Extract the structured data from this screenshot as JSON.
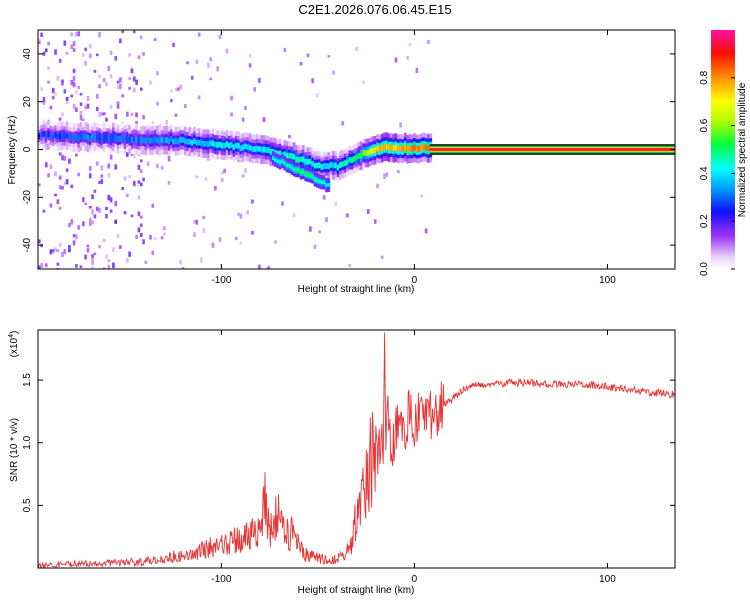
{
  "title": "C2E1.2026.076.06.45.E15",
  "chart_data": [
    {
      "type": "heatmap",
      "xlabel": "Height of straight line (km)",
      "ylabel": "Frequency (Hz)",
      "xlim": [
        -195,
        135
      ],
      "ylim": [
        -50,
        50
      ],
      "xticks": [
        -100,
        0,
        100
      ],
      "xtick_labels": [
        "-100",
        "0",
        "100"
      ],
      "yticks": [
        -40,
        -20,
        0,
        20,
        40
      ],
      "ytick_labels": [
        "-40",
        "-20",
        "0",
        "20",
        "40"
      ],
      "colorbar": {
        "label": "Normalized spectral amplitude",
        "range": [
          0,
          1
        ],
        "ticks": [
          0.0,
          0.2,
          0.4,
          0.6,
          0.8
        ],
        "tick_labels": [
          "0.0",
          "0.2",
          "0.4",
          "0.6",
          "0.8"
        ]
      },
      "ridge": {
        "x": [
          -193,
          -170,
          -150,
          -130,
          -110,
          -100,
          -90,
          -80,
          -70,
          -60,
          -50,
          -45,
          -40,
          -35,
          -30,
          -25,
          -20,
          -15,
          -10,
          -5,
          0,
          5,
          10,
          135
        ],
        "freq": [
          6,
          5,
          4.5,
          4,
          3,
          2,
          1,
          0,
          -2,
          -4,
          -7,
          -7,
          -7,
          -5,
          -3,
          -1,
          0.5,
          1,
          0.5,
          0.5,
          0.5,
          0.5,
          0,
          0
        ],
        "amplitude": [
          0.3,
          0.35,
          0.35,
          0.4,
          0.45,
          0.5,
          0.45,
          0.5,
          0.5,
          0.55,
          0.5,
          0.45,
          0.5,
          0.55,
          0.6,
          0.7,
          0.85,
          0.9,
          0.9,
          0.9,
          0.95,
          0.95,
          0.95,
          0.95
        ]
      },
      "lower_branch": {
        "x": [
          -75,
          -70,
          -65,
          -60,
          -55,
          -50,
          -45
        ],
        "freq": [
          -3,
          -5,
          -7,
          -9,
          -11,
          -13,
          -15
        ],
        "amplitude": [
          0.35,
          0.4,
          0.4,
          0.45,
          0.45,
          0.4,
          0.35
        ]
      }
    },
    {
      "type": "line",
      "xlabel": "Height of straight line (km)",
      "ylabel": "SNR (10 * v/v)",
      "y_multiplier": "(x10",
      "y_multiplier_exp": "4",
      "y_multiplier_close": ")",
      "xlim": [
        -195,
        135
      ],
      "ylim": [
        0,
        1.9
      ],
      "xticks": [
        -100,
        0,
        100
      ],
      "xtick_labels": [
        "-100",
        "0",
        "100"
      ],
      "yticks": [
        0.5,
        1.0,
        1.5
      ],
      "ytick_labels": [
        "0.5",
        "1.0",
        "1.5"
      ],
      "series": [
        {
          "name": "SNR",
          "color": "#e83434",
          "x": [
            -195,
            -180,
            -160,
            -140,
            -125,
            -115,
            -105,
            -95,
            -85,
            -80,
            -78,
            -75,
            -70,
            -65,
            -62,
            -58,
            -52,
            -46,
            -40,
            -36,
            -32,
            -30,
            -27,
            -25,
            -22,
            -20,
            -18,
            -16,
            -15.5,
            -15,
            -14,
            -12,
            -10,
            -8,
            -5,
            -2,
            0,
            3,
            6,
            10,
            15,
            20,
            25,
            30,
            40,
            50,
            60,
            70,
            80,
            90,
            100,
            110,
            120,
            135
          ],
          "y": [
            0.02,
            0.03,
            0.04,
            0.05,
            0.09,
            0.11,
            0.17,
            0.21,
            0.26,
            0.33,
            0.58,
            0.3,
            0.45,
            0.25,
            0.32,
            0.12,
            0.1,
            0.06,
            0.07,
            0.1,
            0.22,
            0.45,
            0.6,
            0.72,
            0.9,
            0.82,
            1.05,
            0.9,
            1.88,
            0.95,
            1.2,
            0.95,
            1.05,
            1.2,
            1.1,
            1.3,
            1.1,
            1.22,
            1.25,
            1.2,
            1.3,
            1.35,
            1.42,
            1.46,
            1.47,
            1.48,
            1.48,
            1.47,
            1.47,
            1.46,
            1.45,
            1.43,
            1.41,
            1.38
          ]
        }
      ]
    }
  ]
}
